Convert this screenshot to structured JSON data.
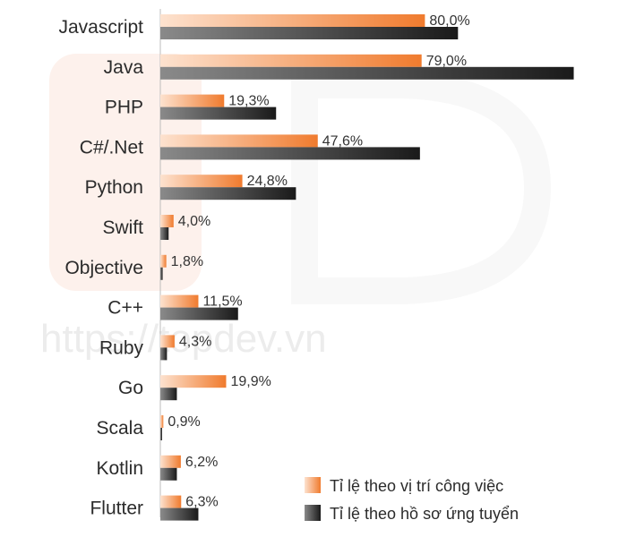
{
  "watermark": {
    "text": "https://topdev.vn"
  },
  "colors": {
    "job_gradient_start": "#fde2cf",
    "job_gradient_end": "#f07b2e",
    "candidate_gradient_start": "#8a8a8a",
    "candidate_gradient_end": "#1a1a1a",
    "axis": "#bdbdbd",
    "watermark_shape": "#fdf1ec"
  },
  "legend": {
    "job_label": "Tỉ lệ theo vị trí công việc",
    "candidate_label": "Tỉ lệ theo hồ sơ ứng tuyển"
  },
  "chart_data": {
    "type": "bar",
    "orientation": "horizontal",
    "categories": [
      "Javascript",
      "Java",
      "PHP",
      "C#/.Net",
      "Python",
      "Swift",
      "Objective",
      "C++",
      "Ruby",
      "Go",
      "Scala",
      "Kotlin",
      "Flutter"
    ],
    "series": [
      {
        "name": "Tỉ lệ theo vị trí công việc",
        "values": [
          80.0,
          79.0,
          19.3,
          47.6,
          24.8,
          4.0,
          1.8,
          11.5,
          4.3,
          19.9,
          0.9,
          6.2,
          6.3
        ],
        "labels": [
          "80,0%",
          "79,0%",
          "19,3%",
          "47,6%",
          "24,8%",
          "4,0%",
          "1,8%",
          "11,5%",
          "4,3%",
          "19,9%",
          "0,9%",
          "6,2%",
          "6,3%"
        ]
      },
      {
        "name": "Tỉ lệ theo hồ sơ ứng tuyển",
        "values": [
          90.0,
          125.0,
          35.0,
          78.5,
          41.0,
          2.5,
          0.7,
          23.5,
          2.0,
          5.0,
          0.5,
          5.0,
          11.5
        ]
      }
    ],
    "xlim": [
      0,
      130
    ],
    "legend_position": "bottom-right",
    "grid": false
  }
}
